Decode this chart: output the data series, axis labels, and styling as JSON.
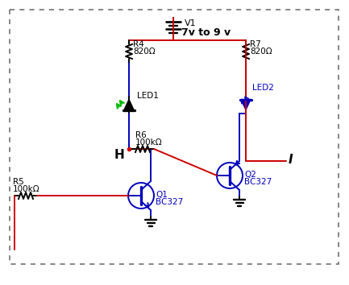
{
  "background_color": "#ffffff",
  "border_color": "#666666",
  "red_wire": "#cc0000",
  "blue_wire": "#0000cc",
  "black_component": "#000000",
  "blue_component": "#0000bb",
  "green_color": "#00bb00",
  "label_H": "H",
  "label_I": "I",
  "label_V1": "V1",
  "label_V1_val": "7v to 9 v",
  "label_R4": "R4",
  "label_R4_val": "820Ω",
  "label_R5": "R5",
  "label_R5_val": "100kΩ",
  "label_R6": "R6",
  "label_R6_val": "100kΩ",
  "label_R7": "R7",
  "label_R7_val": "820Ω",
  "label_LED1": "LED1",
  "label_LED2": "LED2",
  "label_Q1": "Q1",
  "label_Q1_val": "BC327",
  "label_Q2": "Q2",
  "label_Q2_val": "BC327",
  "fig_w": 4.33,
  "fig_h": 3.54,
  "dpi": 100
}
